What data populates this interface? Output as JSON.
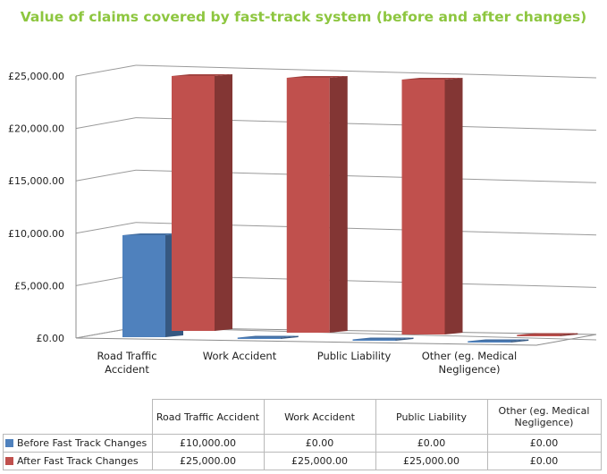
{
  "chart_data": {
    "type": "bar",
    "title": "Value of claims covered by fast-track system (before and after changes)",
    "xlabel": "",
    "ylabel": "",
    "categories": [
      "Road Traffic Accident",
      "Work Accident",
      "Public Liability",
      "Other (eg. Medical Negligence)"
    ],
    "series": [
      {
        "name": "Before Fast Track Changes",
        "values": [
          10000,
          0,
          0,
          0
        ],
        "color": "#4f81bd"
      },
      {
        "name": "After Fast Track Changes",
        "values": [
          25000,
          25000,
          25000,
          0
        ],
        "color": "#c0504d"
      }
    ],
    "ylim": [
      0,
      25000
    ],
    "yticks": [
      "£0.00",
      "£5,000.00",
      "£10,000.00",
      "£15,000.00",
      "£20,000.00",
      "£25,000.00"
    ],
    "x_tick_labels": [
      [
        "Road Traffic",
        "Accident"
      ],
      [
        "Work Accident"
      ],
      [
        "Public Liability"
      ],
      [
        "Other (eg. Medical",
        "Negligence)"
      ]
    ],
    "grid": true,
    "legend": "data table below chart",
    "title_color": "#8dc63f"
  },
  "data_table": {
    "headers": [
      [
        "Road Traffic Accident"
      ],
      [
        "Work Accident"
      ],
      [
        "Public Liability"
      ],
      [
        "Other (eg. Medical",
        "Negligence)"
      ]
    ],
    "rows": [
      {
        "label": "Before Fast Track Changes",
        "color": "#4f81bd",
        "cells": [
          "£10,000.00",
          "£0.00",
          "£0.00",
          "£0.00"
        ]
      },
      {
        "label": "After Fast Track Changes",
        "color": "#c0504d",
        "cells": [
          "£25,000.00",
          "£25,000.00",
          "£25,000.00",
          "£0.00"
        ]
      }
    ]
  }
}
